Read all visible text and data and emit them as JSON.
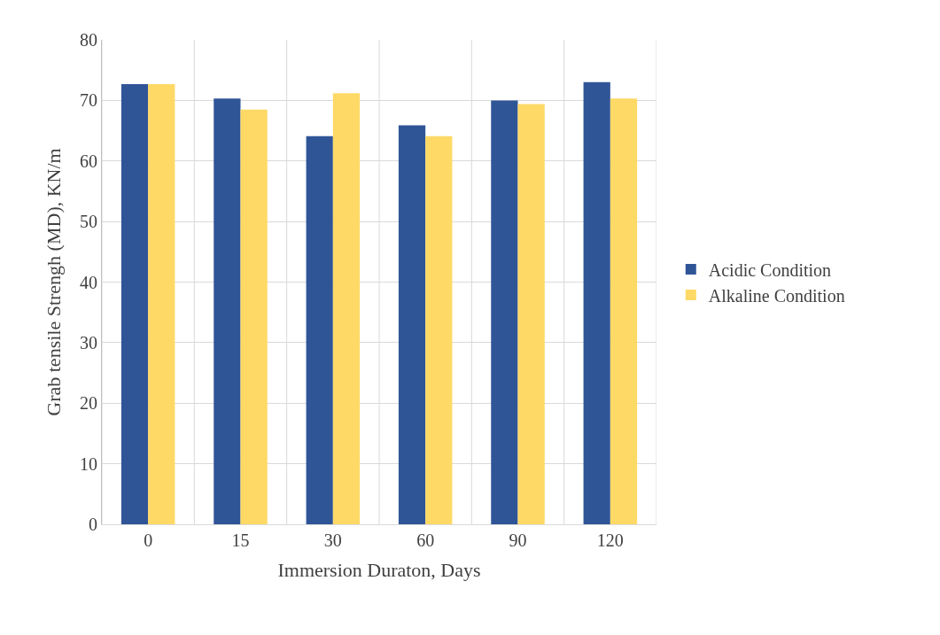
{
  "chart_data": {
    "type": "bar",
    "xlabel": "Immersion Duraton, Days",
    "ylabel": "Grab tensile Strengh (MD), KN/m",
    "categories": [
      "0",
      "15",
      "30",
      "60",
      "90",
      "120"
    ],
    "series": [
      {
        "name": "Acidic Condition",
        "color": "#2f5597",
        "values": [
          72.7,
          70.3,
          64.1,
          65.9,
          70.0,
          73.0
        ]
      },
      {
        "name": "Alkaline Condition",
        "color": "#ffd966",
        "values": [
          72.7,
          68.5,
          71.2,
          64.1,
          69.4,
          70.3
        ]
      }
    ],
    "ylim": [
      0,
      80
    ],
    "yticks": [
      0,
      10,
      20,
      30,
      40,
      50,
      60,
      70,
      80
    ],
    "grid": true,
    "legend": "right"
  }
}
